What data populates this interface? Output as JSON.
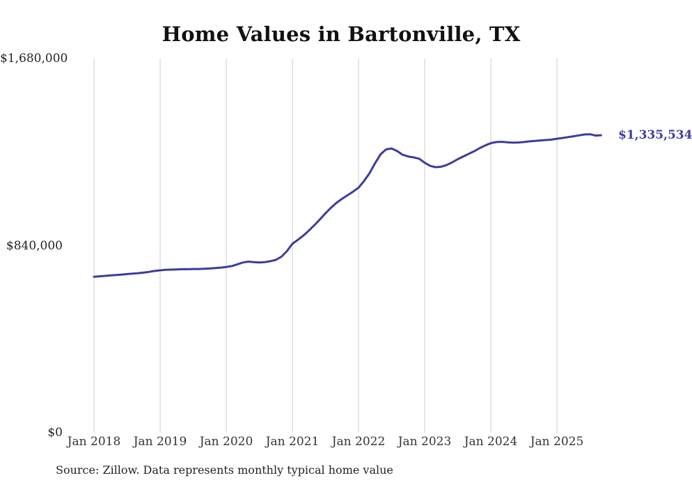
{
  "title": "Home Values in Bartonville, TX",
  "source_note": "Source: Zillow. Data represents monthly typical home value",
  "end_label": "$1,335,534",
  "colors": {
    "line": "#3d3b9e",
    "grid": "#cccccc",
    "title": "#111111",
    "tick": "#333333"
  },
  "chart_data": {
    "type": "line",
    "title": "Home Values in Bartonville, TX",
    "frequency": "monthly",
    "x_start": "Jan 2018",
    "x_end": "Sep 2025",
    "x_tick_labels": [
      "Jan 2018",
      "Jan 2019",
      "Jan 2020",
      "Jan 2021",
      "Jan 2022",
      "Jan 2023",
      "Jan 2024",
      "Jan 2025"
    ],
    "y_ticks": [
      {
        "label": "$0",
        "value": 0
      },
      {
        "label": "$840,000",
        "value": 840000
      },
      {
        "label": "$1,680,000",
        "value": 1680000
      }
    ],
    "ylim": [
      0,
      1680000
    ],
    "grid": "vertical",
    "legend_position": "none",
    "latest_value_label": "$1,335,534",
    "series": [
      {
        "name": "Typical home value",
        "values": [
          700000,
          702000,
          704000,
          706000,
          708000,
          710000,
          712000,
          714000,
          716000,
          719000,
          722000,
          726000,
          729000,
          731000,
          732000,
          733000,
          734000,
          734000,
          735000,
          735000,
          736000,
          737000,
          739000,
          741000,
          744000,
          748000,
          756000,
          764000,
          768000,
          766000,
          764000,
          766000,
          770000,
          776000,
          790000,
          815000,
          848000,
          866000,
          885000,
          908000,
          932000,
          958000,
          985000,
          1010000,
          1032000,
          1050000,
          1066000,
          1082000,
          1100000,
          1130000,
          1165000,
          1210000,
          1250000,
          1272000,
          1276000,
          1265000,
          1248000,
          1240000,
          1236000,
          1230000,
          1212000,
          1198000,
          1192000,
          1194000,
          1202000,
          1214000,
          1228000,
          1240000,
          1252000,
          1264000,
          1278000,
          1290000,
          1300000,
          1305000,
          1306000,
          1304000,
          1302000,
          1303000,
          1305000,
          1308000,
          1310000,
          1312000,
          1314000,
          1316000,
          1320000,
          1323000,
          1327000,
          1331000,
          1335000,
          1339000,
          1340000,
          1334000,
          1335534
        ]
      }
    ]
  }
}
